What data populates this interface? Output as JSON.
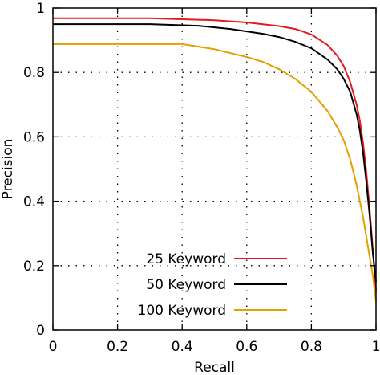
{
  "chart_data": {
    "type": "line",
    "xlabel": "Recall",
    "ylabel": "Precision",
    "xlim": [
      0,
      1
    ],
    "ylim": [
      0,
      1
    ],
    "xticks": [
      "0",
      "0.2",
      "0.4",
      "0.6",
      "0.8",
      "1"
    ],
    "yticks": [
      "0",
      "0.2",
      "0.4",
      "0.6",
      "0.8",
      "1"
    ],
    "grid": true,
    "legend_position": "bottom-right",
    "series": [
      {
        "name": "25 Keyword",
        "color": "#e41a1c",
        "x": [
          0,
          0.3,
          0.5,
          0.6,
          0.7,
          0.75,
          0.8,
          0.85,
          0.88,
          0.9,
          0.92,
          0.94,
          0.95,
          0.96,
          0.97,
          0.98,
          0.99,
          1.0
        ],
        "y": [
          0.968,
          0.968,
          0.962,
          0.955,
          0.944,
          0.935,
          0.918,
          0.885,
          0.852,
          0.82,
          0.77,
          0.7,
          0.65,
          0.58,
          0.49,
          0.38,
          0.25,
          0.12
        ]
      },
      {
        "name": "50 Keyword",
        "color": "#000000",
        "x": [
          0,
          0.3,
          0.45,
          0.55,
          0.65,
          0.7,
          0.75,
          0.8,
          0.85,
          0.88,
          0.9,
          0.92,
          0.94,
          0.95,
          0.96,
          0.97,
          0.98,
          0.99,
          1.0
        ],
        "y": [
          0.95,
          0.95,
          0.945,
          0.935,
          0.92,
          0.91,
          0.895,
          0.875,
          0.84,
          0.81,
          0.78,
          0.74,
          0.67,
          0.62,
          0.55,
          0.46,
          0.36,
          0.24,
          0.15
        ]
      },
      {
        "name": "100 Keyword",
        "color": "#e69f00",
        "x": [
          0,
          0.4,
          0.5,
          0.6,
          0.65,
          0.7,
          0.75,
          0.8,
          0.85,
          0.88,
          0.9,
          0.92,
          0.94,
          0.95,
          0.96,
          0.97,
          0.98,
          0.99,
          1.0
        ],
        "y": [
          0.888,
          0.888,
          0.872,
          0.848,
          0.833,
          0.81,
          0.78,
          0.74,
          0.68,
          0.63,
          0.59,
          0.53,
          0.45,
          0.4,
          0.35,
          0.29,
          0.23,
          0.17,
          0.09
        ]
      }
    ]
  }
}
